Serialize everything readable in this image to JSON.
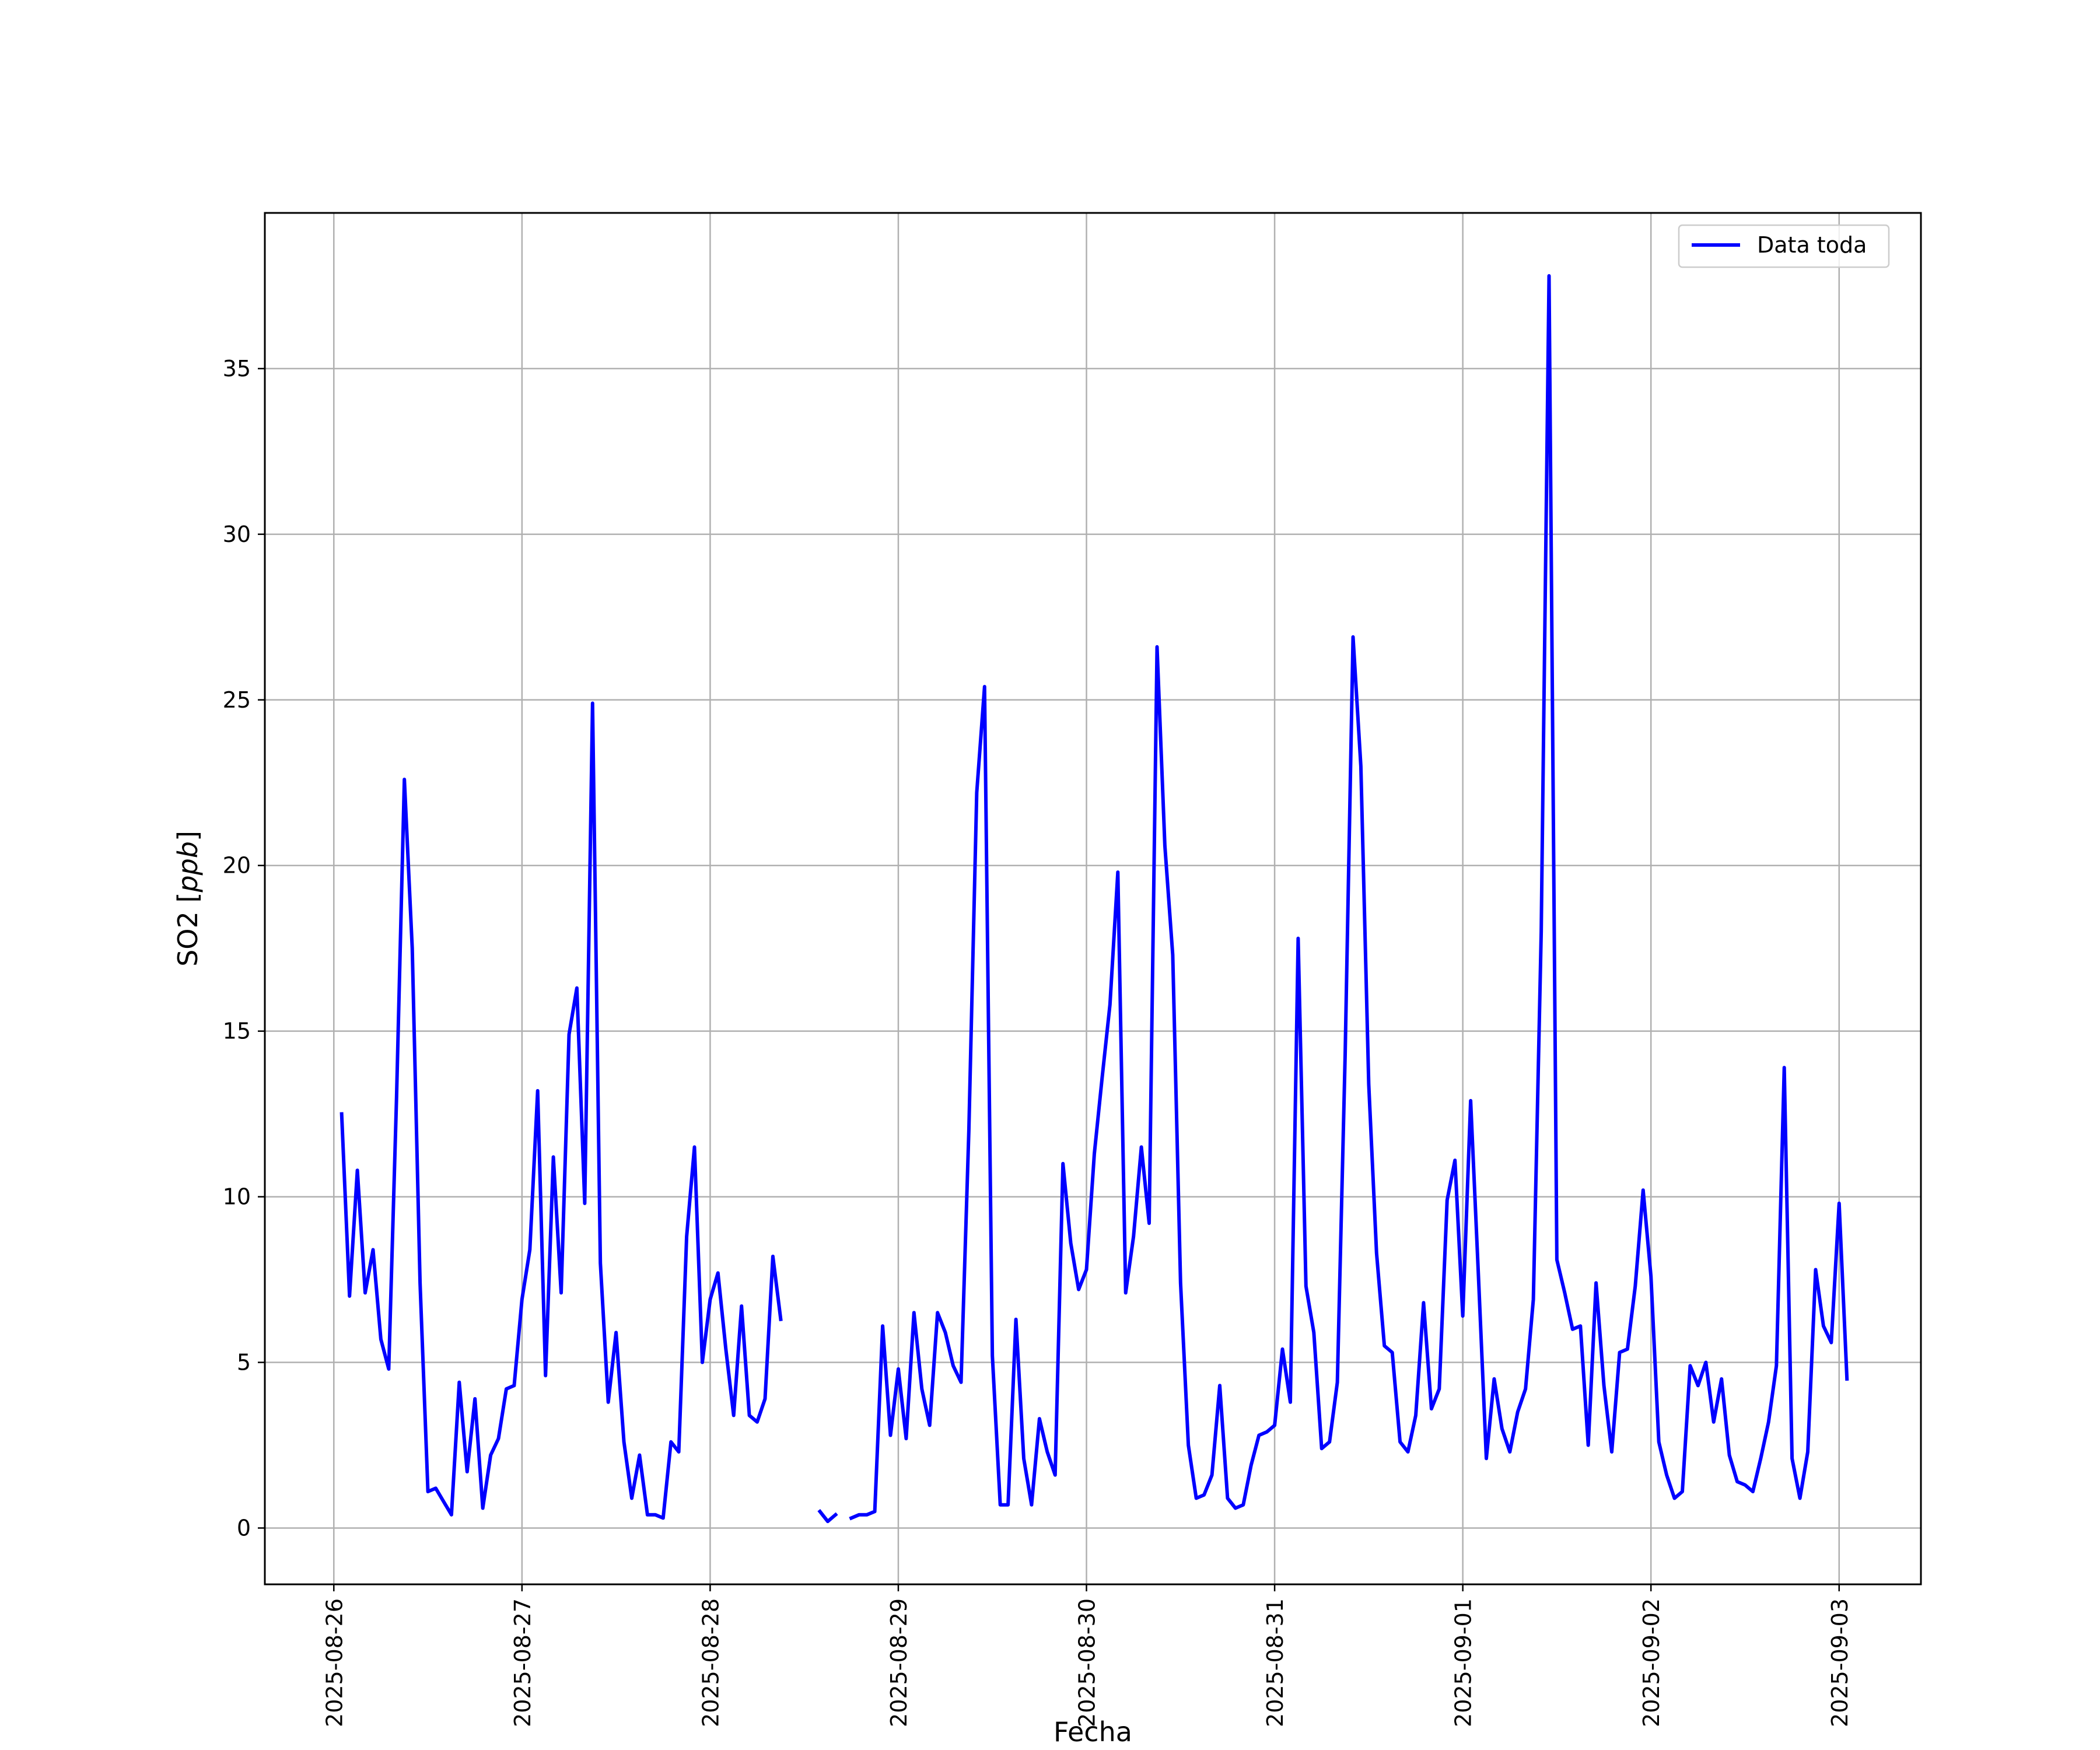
{
  "chart_data": {
    "type": "line",
    "title": "",
    "xlabel": "Fecha",
    "ylabel": "SO2 [ppb]",
    "ylim": [
      -1.7,
      39.7
    ],
    "xlim": [
      "2025-08-25T15:12",
      "2025-09-03T10:26"
    ],
    "grid": true,
    "legend_position": "top-right",
    "x_ticks": [
      "2025-08-26",
      "2025-08-27",
      "2025-08-28",
      "2025-08-29",
      "2025-08-30",
      "2025-08-31",
      "2025-09-01",
      "2025-09-02",
      "2025-09-03"
    ],
    "y_ticks": [
      0,
      5,
      10,
      15,
      20,
      25,
      30,
      35
    ],
    "x_step_hours": 1,
    "colors": {
      "series": "#0000ff",
      "grid": "#b0b0b0"
    },
    "series": [
      {
        "name": "Data toda",
        "color": "#0000ff",
        "x_start": "2025-08-26T01:00",
        "y": [
          12.5,
          7.0,
          10.8,
          7.1,
          8.4,
          5.7,
          4.8,
          13.0,
          22.6,
          17.5,
          7.4,
          1.1,
          1.2,
          0.8,
          0.4,
          4.4,
          1.7,
          3.9,
          0.6,
          2.2,
          2.7,
          4.2,
          4.3,
          6.9,
          8.4,
          13.2,
          4.6,
          11.2,
          7.1,
          14.9,
          16.3,
          9.8,
          24.9,
          8.0,
          3.8,
          5.9,
          2.6,
          0.9,
          2.2,
          0.4,
          0.4,
          0.3,
          2.6,
          2.3,
          8.8,
          11.5,
          5.0,
          6.9,
          7.7,
          5.4,
          3.4,
          6.7,
          3.4,
          3.2,
          3.9,
          8.2,
          6.3,
          null,
          null,
          null,
          null,
          0.5,
          0.2,
          0.4,
          null,
          0.3,
          0.4,
          0.4,
          0.5,
          6.1,
          2.8,
          4.8,
          2.7,
          6.5,
          4.2,
          3.1,
          6.5,
          5.9,
          4.9,
          4.4,
          12.0,
          22.2,
          25.4,
          5.2,
          0.7,
          0.7,
          6.3,
          2.1,
          0.7,
          3.3,
          2.3,
          1.6,
          11.0,
          8.6,
          7.2,
          7.8,
          11.3,
          13.6,
          15.8,
          19.8,
          7.1,
          8.8,
          11.5,
          9.2,
          26.6,
          20.6,
          17.3,
          7.4,
          2.5,
          0.9,
          1.0,
          1.6,
          4.3,
          0.9,
          0.6,
          0.7,
          1.9,
          2.8,
          2.9,
          3.1,
          5.4,
          3.8,
          17.8,
          7.3,
          5.9,
          2.4,
          2.6,
          4.4,
          14.3,
          26.9,
          23.0,
          13.4,
          8.3,
          5.5,
          5.3,
          2.6,
          2.3,
          3.4,
          6.8,
          3.6,
          4.2,
          9.9,
          11.1,
          6.4,
          12.9,
          7.6,
          2.1,
          4.5,
          3.0,
          2.3,
          3.5,
          4.2,
          6.9,
          18.0,
          37.8,
          8.1,
          7.1,
          6.0,
          6.1,
          2.5,
          7.4,
          4.3,
          2.3,
          5.3,
          5.4,
          7.3,
          10.2,
          7.6,
          2.6,
          1.6,
          0.9,
          1.1,
          4.9,
          4.3,
          5.0,
          3.2,
          4.5,
          2.2,
          1.4,
          1.3,
          1.1,
          2.1,
          3.2,
          4.9,
          13.9,
          2.1,
          0.9,
          2.3,
          7.8,
          6.1,
          5.6,
          9.8,
          4.5
        ]
      }
    ]
  }
}
